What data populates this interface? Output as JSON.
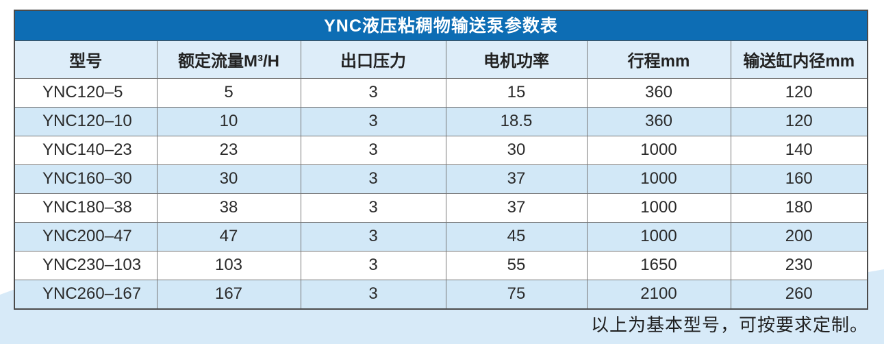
{
  "title": "YNC液压粘稠物输送泵参数表",
  "table": {
    "columns": [
      "型号",
      "额定流量M³/H",
      "出口压力",
      "电机功率",
      "行程mm",
      "输送缸内径mm"
    ],
    "rows": [
      [
        "YNC120–5",
        "5",
        "3",
        "15",
        "360",
        "120"
      ],
      [
        "YNC120–10",
        "10",
        "3",
        "18.5",
        "360",
        "120"
      ],
      [
        "YNC140–23",
        "23",
        "3",
        "30",
        "1000",
        "140"
      ],
      [
        "YNC160–30",
        "30",
        "3",
        "37",
        "1000",
        "160"
      ],
      [
        "YNC180–38",
        "38",
        "3",
        "37",
        "1000",
        "180"
      ],
      [
        "YNC200–47",
        "47",
        "3",
        "45",
        "1000",
        "200"
      ],
      [
        "YNC230–103",
        "103",
        "3",
        "55",
        "1650",
        "230"
      ],
      [
        "YNC260–167",
        "167",
        "3",
        "75",
        "2100",
        "260"
      ]
    ]
  },
  "footer_note": "以上为基本型号，可按要求定制。",
  "colors": {
    "title_bar_bg": "#0d6db4",
    "title_text": "#ffffff",
    "header_row_bg": "#ddedf9",
    "stripe_row_bg": "#d2e8f7",
    "bottom_band_bg": "#d7eaf8",
    "grid_border": "#757575",
    "outer_border": "#4b4b4b",
    "body_text": "#2a2a2a"
  }
}
